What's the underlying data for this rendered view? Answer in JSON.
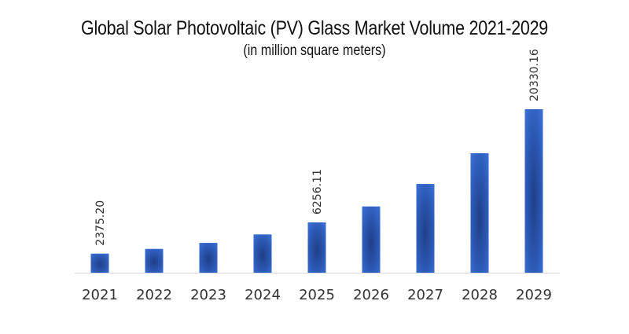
{
  "chart_data": {
    "type": "bar",
    "title": "Global Solar Photovoltaic (PV) Glass Market Volume 2021-2029",
    "subtitle": "(in million square meters)",
    "xlabel": "",
    "ylabel": "",
    "categories": [
      "2021",
      "2022",
      "2023",
      "2024",
      "2025",
      "2026",
      "2027",
      "2028",
      "2029"
    ],
    "values": [
      2375.2,
      2960,
      3710,
      4760,
      6256.11,
      8240,
      11040,
      14860,
      20330.16
    ],
    "data_labels": [
      "2375.20",
      null,
      null,
      null,
      "6256.11",
      null,
      null,
      null,
      "20330.16"
    ],
    "ylim": [
      0,
      20330.16
    ],
    "grid": false,
    "legend": "none",
    "colors": {
      "bar": "#3366cc",
      "bar_dark": "#1f3f88",
      "axis": "#d9d9d9"
    }
  }
}
